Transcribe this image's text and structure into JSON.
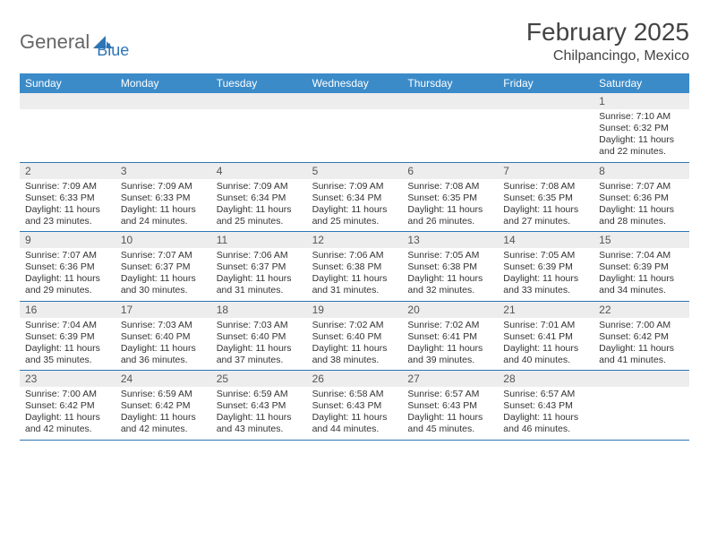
{
  "logo": {
    "text1": "General",
    "text2": "Blue"
  },
  "title": "February 2025",
  "location": "Chilpancingo, Mexico",
  "colors": {
    "header_bg": "#3b8bc9",
    "header_text": "#ffffff",
    "daynum_bg": "#ededed",
    "border": "#2e75b6",
    "text": "#333333",
    "title_text": "#444444",
    "logo_gray": "#666666",
    "logo_blue": "#2e75b6"
  },
  "days_of_week": [
    "Sunday",
    "Monday",
    "Tuesday",
    "Wednesday",
    "Thursday",
    "Friday",
    "Saturday"
  ],
  "weeks": [
    [
      null,
      null,
      null,
      null,
      null,
      null,
      {
        "n": "1",
        "sr": "Sunrise: 7:10 AM",
        "ss": "Sunset: 6:32 PM",
        "d1": "Daylight: 11 hours",
        "d2": "and 22 minutes."
      }
    ],
    [
      {
        "n": "2",
        "sr": "Sunrise: 7:09 AM",
        "ss": "Sunset: 6:33 PM",
        "d1": "Daylight: 11 hours",
        "d2": "and 23 minutes."
      },
      {
        "n": "3",
        "sr": "Sunrise: 7:09 AM",
        "ss": "Sunset: 6:33 PM",
        "d1": "Daylight: 11 hours",
        "d2": "and 24 minutes."
      },
      {
        "n": "4",
        "sr": "Sunrise: 7:09 AM",
        "ss": "Sunset: 6:34 PM",
        "d1": "Daylight: 11 hours",
        "d2": "and 25 minutes."
      },
      {
        "n": "5",
        "sr": "Sunrise: 7:09 AM",
        "ss": "Sunset: 6:34 PM",
        "d1": "Daylight: 11 hours",
        "d2": "and 25 minutes."
      },
      {
        "n": "6",
        "sr": "Sunrise: 7:08 AM",
        "ss": "Sunset: 6:35 PM",
        "d1": "Daylight: 11 hours",
        "d2": "and 26 minutes."
      },
      {
        "n": "7",
        "sr": "Sunrise: 7:08 AM",
        "ss": "Sunset: 6:35 PM",
        "d1": "Daylight: 11 hours",
        "d2": "and 27 minutes."
      },
      {
        "n": "8",
        "sr": "Sunrise: 7:07 AM",
        "ss": "Sunset: 6:36 PM",
        "d1": "Daylight: 11 hours",
        "d2": "and 28 minutes."
      }
    ],
    [
      {
        "n": "9",
        "sr": "Sunrise: 7:07 AM",
        "ss": "Sunset: 6:36 PM",
        "d1": "Daylight: 11 hours",
        "d2": "and 29 minutes."
      },
      {
        "n": "10",
        "sr": "Sunrise: 7:07 AM",
        "ss": "Sunset: 6:37 PM",
        "d1": "Daylight: 11 hours",
        "d2": "and 30 minutes."
      },
      {
        "n": "11",
        "sr": "Sunrise: 7:06 AM",
        "ss": "Sunset: 6:37 PM",
        "d1": "Daylight: 11 hours",
        "d2": "and 31 minutes."
      },
      {
        "n": "12",
        "sr": "Sunrise: 7:06 AM",
        "ss": "Sunset: 6:38 PM",
        "d1": "Daylight: 11 hours",
        "d2": "and 31 minutes."
      },
      {
        "n": "13",
        "sr": "Sunrise: 7:05 AM",
        "ss": "Sunset: 6:38 PM",
        "d1": "Daylight: 11 hours",
        "d2": "and 32 minutes."
      },
      {
        "n": "14",
        "sr": "Sunrise: 7:05 AM",
        "ss": "Sunset: 6:39 PM",
        "d1": "Daylight: 11 hours",
        "d2": "and 33 minutes."
      },
      {
        "n": "15",
        "sr": "Sunrise: 7:04 AM",
        "ss": "Sunset: 6:39 PM",
        "d1": "Daylight: 11 hours",
        "d2": "and 34 minutes."
      }
    ],
    [
      {
        "n": "16",
        "sr": "Sunrise: 7:04 AM",
        "ss": "Sunset: 6:39 PM",
        "d1": "Daylight: 11 hours",
        "d2": "and 35 minutes."
      },
      {
        "n": "17",
        "sr": "Sunrise: 7:03 AM",
        "ss": "Sunset: 6:40 PM",
        "d1": "Daylight: 11 hours",
        "d2": "and 36 minutes."
      },
      {
        "n": "18",
        "sr": "Sunrise: 7:03 AM",
        "ss": "Sunset: 6:40 PM",
        "d1": "Daylight: 11 hours",
        "d2": "and 37 minutes."
      },
      {
        "n": "19",
        "sr": "Sunrise: 7:02 AM",
        "ss": "Sunset: 6:40 PM",
        "d1": "Daylight: 11 hours",
        "d2": "and 38 minutes."
      },
      {
        "n": "20",
        "sr": "Sunrise: 7:02 AM",
        "ss": "Sunset: 6:41 PM",
        "d1": "Daylight: 11 hours",
        "d2": "and 39 minutes."
      },
      {
        "n": "21",
        "sr": "Sunrise: 7:01 AM",
        "ss": "Sunset: 6:41 PM",
        "d1": "Daylight: 11 hours",
        "d2": "and 40 minutes."
      },
      {
        "n": "22",
        "sr": "Sunrise: 7:00 AM",
        "ss": "Sunset: 6:42 PM",
        "d1": "Daylight: 11 hours",
        "d2": "and 41 minutes."
      }
    ],
    [
      {
        "n": "23",
        "sr": "Sunrise: 7:00 AM",
        "ss": "Sunset: 6:42 PM",
        "d1": "Daylight: 11 hours",
        "d2": "and 42 minutes."
      },
      {
        "n": "24",
        "sr": "Sunrise: 6:59 AM",
        "ss": "Sunset: 6:42 PM",
        "d1": "Daylight: 11 hours",
        "d2": "and 42 minutes."
      },
      {
        "n": "25",
        "sr": "Sunrise: 6:59 AM",
        "ss": "Sunset: 6:43 PM",
        "d1": "Daylight: 11 hours",
        "d2": "and 43 minutes."
      },
      {
        "n": "26",
        "sr": "Sunrise: 6:58 AM",
        "ss": "Sunset: 6:43 PM",
        "d1": "Daylight: 11 hours",
        "d2": "and 44 minutes."
      },
      {
        "n": "27",
        "sr": "Sunrise: 6:57 AM",
        "ss": "Sunset: 6:43 PM",
        "d1": "Daylight: 11 hours",
        "d2": "and 45 minutes."
      },
      {
        "n": "28",
        "sr": "Sunrise: 6:57 AM",
        "ss": "Sunset: 6:43 PM",
        "d1": "Daylight: 11 hours",
        "d2": "and 46 minutes."
      },
      null
    ]
  ]
}
